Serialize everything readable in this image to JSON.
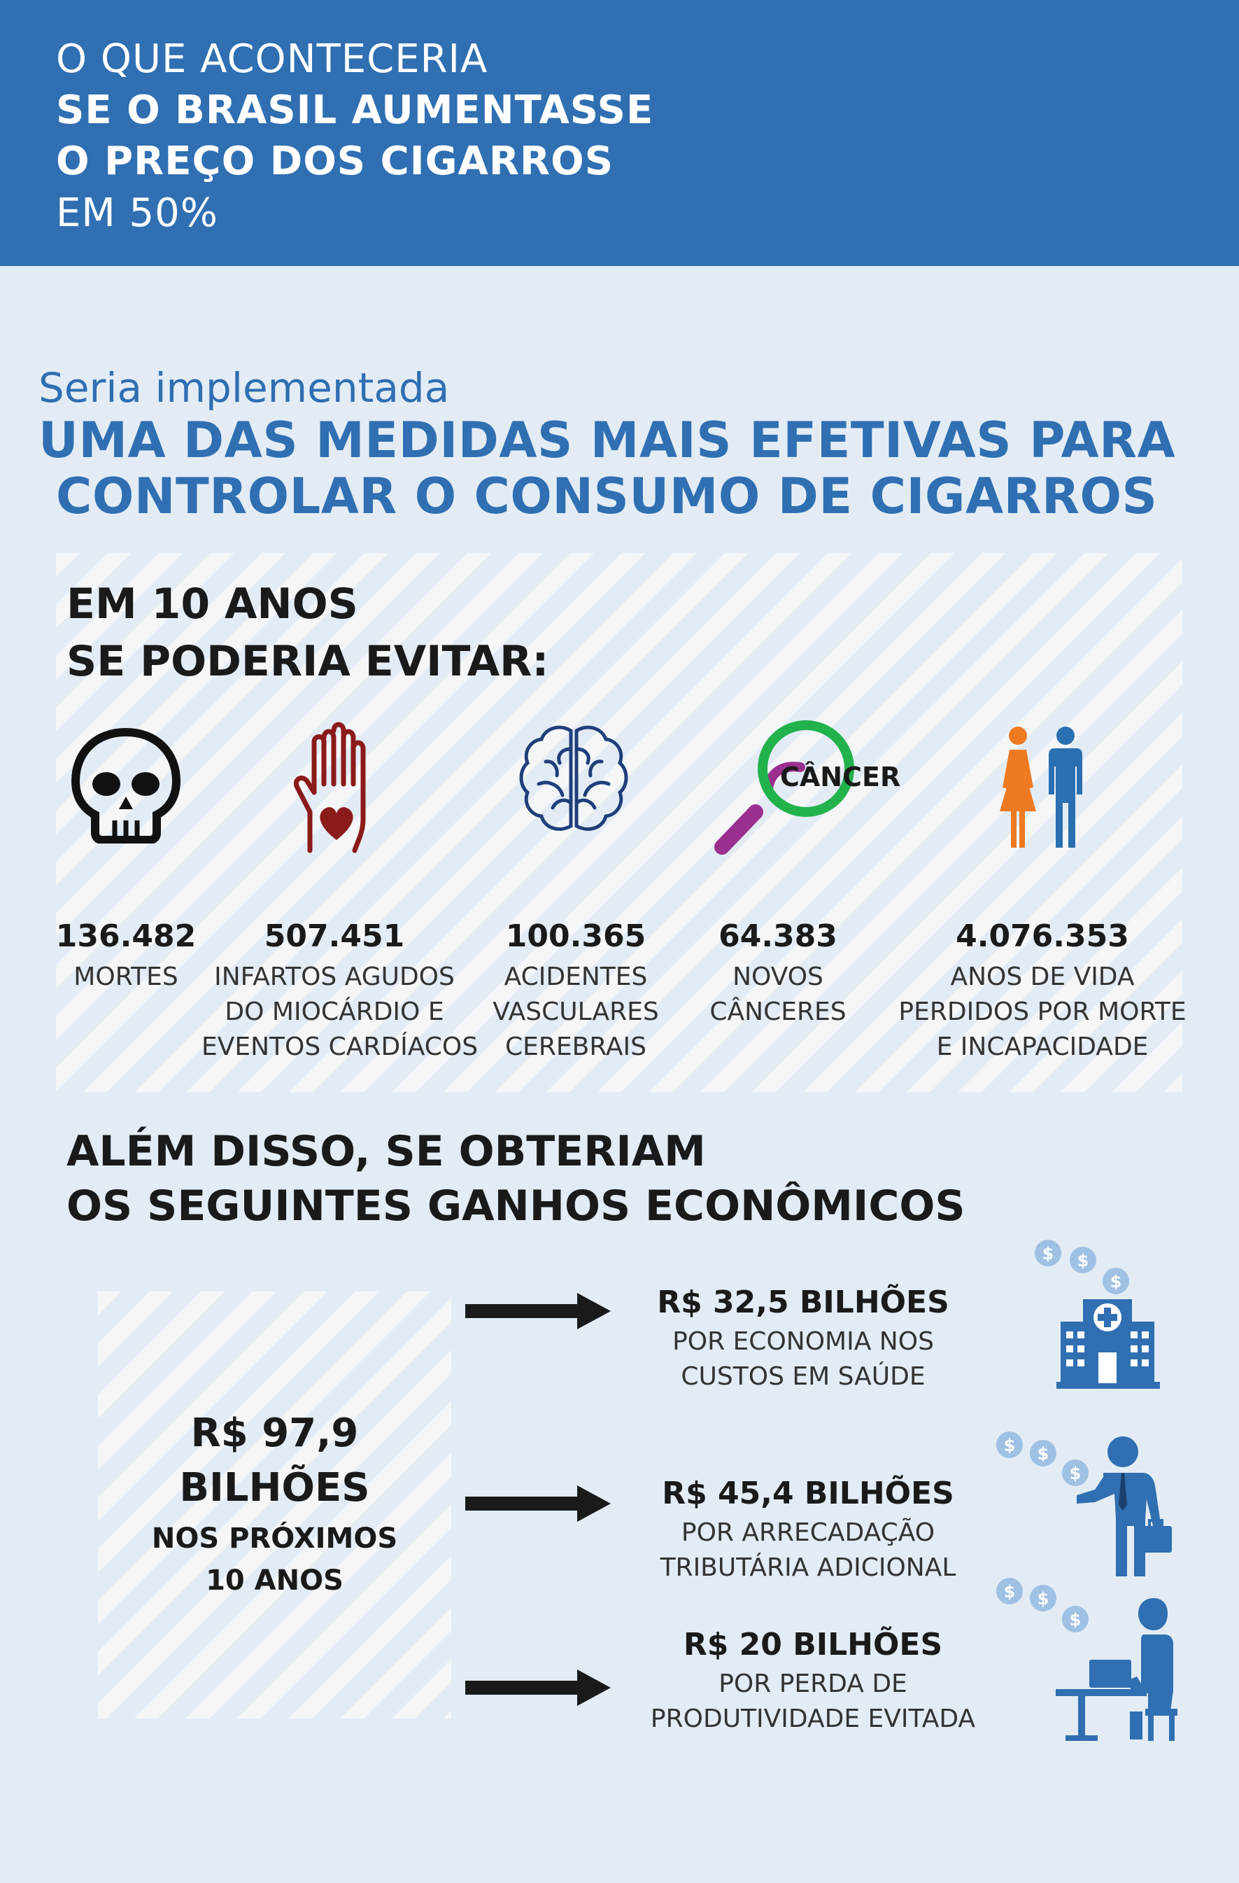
{
  "header": {
    "line1": "O QUE ACONTECERIA",
    "line2": "SE O BRASIL AUMENTASSE",
    "line3": "O PREÇO DOS CIGARROS",
    "line4": "EM 50%"
  },
  "intro": {
    "light": "Seria implementada",
    "bold_line1": "UMA DAS MEDIDAS MAIS EFETIVAS PARA",
    "bold_line2": "CONTROLAR O CONSUMO DE CIGARROS"
  },
  "avoid": {
    "title_line1": "EM 10 ANOS",
    "title_line2": "SE PODERIA EVITAR:",
    "stats": [
      {
        "icon": "skull-icon",
        "value": "136.482",
        "label": [
          "MORTES"
        ]
      },
      {
        "icon": "hand-heart-icon",
        "value": "507.451",
        "label": [
          "INFARTOS AGUDOS",
          "DO MIOCÁRDIO E",
          "EVENTOS CARDÍACOS"
        ]
      },
      {
        "icon": "brain-icon",
        "value": "100.365",
        "label": [
          "ACIDENTES",
          "VASCULARES",
          "CEREBRAIS"
        ]
      },
      {
        "icon": "magnifier-cancer-icon",
        "icon_text": "CÂNCER",
        "value": "64.383",
        "label": [
          "NOVOS",
          "CÂNCERES"
        ]
      },
      {
        "icon": "woman-man-icon",
        "value": "4.076.353",
        "label": [
          "ANOS DE VIDA",
          "PERDIDOS POR MORTE",
          "E INCAPACIDADE"
        ]
      }
    ]
  },
  "gains": {
    "title_line1": "ALÉM DISSO, SE OBTERIAM",
    "title_line2": "OS SEGUINTES GANHOS ECONÔMICOS",
    "total": {
      "line1": "R$ 97,9",
      "line2": "BILHÕES",
      "line3": "NOS PRÓXIMOS",
      "line4": "10 ANOS"
    },
    "items": [
      {
        "icon": "hospital-money-icon",
        "amount": "R$ 32,5 BILHÕES",
        "desc": [
          "POR ECONOMIA NOS",
          "CUSTOS EM SAÚDE"
        ]
      },
      {
        "icon": "businessman-money-icon",
        "amount": "R$ 45,4 BILHÕES",
        "desc": [
          "POR ARRECADAÇÃO",
          "TRIBUTÁRIA ADICIONAL"
        ]
      },
      {
        "icon": "office-worker-money-icon",
        "amount": "R$ 20 BILHÕES",
        "desc": [
          "POR PERDA  DE",
          "PRODUTIVIDADE  EVITADA"
        ]
      }
    ]
  },
  "colors": {
    "header_blue": "#2f6fb2",
    "background": "#e3ecf5",
    "heart_red": "#8b1a1a",
    "brain_navy": "#1f3f7a",
    "magnifier_green": "#22b24c",
    "magnifier_purple": "#9b2f8f",
    "woman_orange": "#ee7a22",
    "man_blue": "#2a6fb0",
    "gain_icon_blue": "#2f6fb2"
  }
}
